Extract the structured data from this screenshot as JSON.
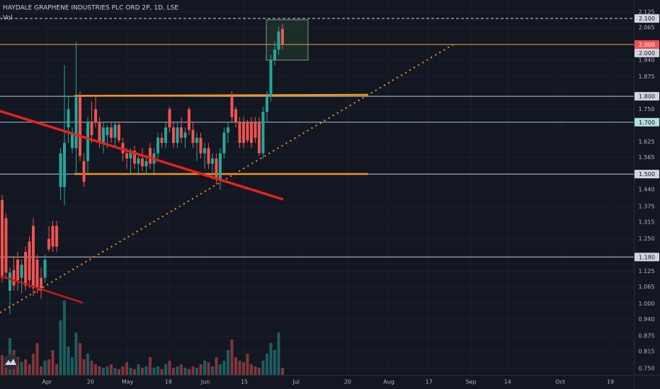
{
  "chart_data": {
    "type": "candlestick",
    "title": "HAYDALE GRAPHENE INDUSTRIES PLC ORD 2P, 1D, LSE",
    "volume_label": "Vol",
    "up_color": "#26a69a",
    "down_color": "#ef5350",
    "grid": true,
    "ylim": [
      0.7255,
      2.1714
    ],
    "yticks": [
      2.125,
      2.065,
      {
        "value": 1.94,
        "label": "1.940"
      },
      1.875,
      {
        "value": 1.75,
        "label": "1.750"
      },
      1.625,
      1.565,
      {
        "value": 1.44,
        "label": "1.440"
      },
      1.375,
      1.315,
      {
        "value": 1.25,
        "label": "1.250"
      },
      1.125,
      1.065,
      {
        "value": 1.0,
        "label": "1.000"
      },
      {
        "value": 0.94,
        "label": "0.940"
      },
      0.875,
      0.815,
      {
        "value": 0.75,
        "label": "0.750"
      }
    ],
    "xlim": [
      -0.55,
      162.2
    ],
    "xticks": [
      {
        "value": 11.5,
        "label": "Apr"
      },
      {
        "value": 22.7,
        "label": "20"
      },
      {
        "value": 32.2,
        "label": "May"
      },
      {
        "value": 42.7,
        "label": "18"
      },
      {
        "value": 52.2,
        "label": "Jun"
      },
      {
        "value": 62.2,
        "label": "15"
      },
      {
        "value": 75.5,
        "label": "Jul"
      },
      {
        "value": 88.7,
        "label": "20"
      },
      {
        "value": 99.3,
        "label": "Aug"
      },
      {
        "value": 109.6,
        "label": "17"
      },
      {
        "value": 120.4,
        "label": "Sep"
      },
      {
        "value": 129.8,
        "label": "14"
      },
      {
        "value": 143.3,
        "label": "Oct"
      },
      {
        "value": 156.2,
        "label": "19"
      }
    ],
    "price_labels": [
      {
        "value": 2.1,
        "label": "2.100",
        "color": "#d1d4dc",
        "text_color": "#131722",
        "line_color": "#d1d4dc",
        "dashed": true
      },
      {
        "value": 2.0,
        "label": "2.000",
        "color": "#ef5350",
        "text_color": "#ffffff",
        "line_color": "#f5a742",
        "dashed": false
      },
      {
        "value": 2.0,
        "label": "2.000",
        "color": "#d1d4dc",
        "text_color": "#131722",
        "line_color": null,
        "dashed": false
      },
      {
        "value": 1.8,
        "label": "1.800",
        "color": "#d1d4dc",
        "text_color": "#131722",
        "line_color": "#c8ccd6",
        "dashed": false
      },
      {
        "value": 1.7,
        "label": "1.700",
        "color": "#b2dfdb",
        "text_color": "#131722",
        "line_color": "#a9c4d6",
        "dashed": false
      },
      {
        "value": 1.5,
        "label": "1.500",
        "color": "#d1d4dc",
        "text_color": "#131722",
        "line_color": "#c8ccd6",
        "dashed": false
      },
      {
        "value": 1.18,
        "label": "1.180",
        "color": "#d1d4dc",
        "text_color": "#131722",
        "line_color": "#c8ccd6",
        "dashed": false
      }
    ],
    "open": [
      1.4,
      1.33,
      1.05,
      1.13,
      1.17,
      1.1,
      1.2,
      1.24,
      1.3,
      1.17,
      1.1,
      1.1,
      1.25,
      1.3,
      1.3,
      1.45,
      1.45,
      1.68,
      1.6,
      1.6,
      1.8,
      1.55,
      1.55,
      1.7,
      1.75,
      1.7,
      1.62,
      1.65,
      1.68,
      1.64,
      1.69,
      1.62,
      1.58,
      1.56,
      1.59,
      1.54,
      1.56,
      1.53,
      1.6,
      1.54,
      1.58,
      1.64,
      1.62,
      1.75,
      1.68,
      1.62,
      1.68,
      1.64,
      1.75,
      1.67,
      1.62,
      1.64,
      1.58,
      1.6,
      1.54,
      1.56,
      1.48,
      1.58,
      1.66,
      1.8,
      1.75,
      1.7,
      1.7,
      1.7,
      1.7,
      1.7,
      1.7,
      1.58,
      1.74,
      1.8,
      1.94,
      1.98,
      2.06
    ],
    "high": [
      1.42,
      1.35,
      1.14,
      1.18,
      1.2,
      1.17,
      1.22,
      1.26,
      1.33,
      1.19,
      1.14,
      1.19,
      1.3,
      1.32,
      1.32,
      1.6,
      1.92,
      1.8,
      1.68,
      2.01,
      1.82,
      1.58,
      1.72,
      1.78,
      1.8,
      1.72,
      1.7,
      1.69,
      1.7,
      1.7,
      1.7,
      1.64,
      1.6,
      1.6,
      1.61,
      1.58,
      1.6,
      1.57,
      1.62,
      1.6,
      1.66,
      1.66,
      1.7,
      1.76,
      1.7,
      1.7,
      1.72,
      1.68,
      1.76,
      1.7,
      1.66,
      1.66,
      1.62,
      1.62,
      1.58,
      1.58,
      1.6,
      1.68,
      1.7,
      1.82,
      1.76,
      1.72,
      1.72,
      1.71,
      1.72,
      1.72,
      1.72,
      1.76,
      1.82,
      1.96,
      2.01,
      2.07,
      2.08
    ],
    "low": [
      1.08,
      1.1,
      0.96,
      1.05,
      1.05,
      1.04,
      1.05,
      1.06,
      1.03,
      1.04,
      1.02,
      1.08,
      1.2,
      1.2,
      1.2,
      1.4,
      1.38,
      1.62,
      1.58,
      1.5,
      1.55,
      1.45,
      1.5,
      1.62,
      1.68,
      1.6,
      1.58,
      1.6,
      1.62,
      1.6,
      1.62,
      1.55,
      1.52,
      1.5,
      1.52,
      1.5,
      1.51,
      1.5,
      1.52,
      1.5,
      1.56,
      1.6,
      1.6,
      1.66,
      1.6,
      1.6,
      1.62,
      1.6,
      1.65,
      1.6,
      1.55,
      1.56,
      1.52,
      1.52,
      1.48,
      1.46,
      1.44,
      1.56,
      1.62,
      1.7,
      1.68,
      1.6,
      1.6,
      1.62,
      1.6,
      1.62,
      1.57,
      1.56,
      1.7,
      1.78,
      1.92,
      1.96,
      1.98
    ],
    "close": [
      1.1,
      1.12,
      1.12,
      1.07,
      1.09,
      1.15,
      1.07,
      1.09,
      1.06,
      1.06,
      1.05,
      1.17,
      1.21,
      1.22,
      1.22,
      1.58,
      1.62,
      1.75,
      1.66,
      1.8,
      1.57,
      1.47,
      1.7,
      1.65,
      1.7,
      1.62,
      1.68,
      1.68,
      1.64,
      1.69,
      1.63,
      1.58,
      1.56,
      1.59,
      1.54,
      1.56,
      1.53,
      1.55,
      1.54,
      1.58,
      1.64,
      1.62,
      1.68,
      1.68,
      1.62,
      1.68,
      1.64,
      1.66,
      1.67,
      1.62,
      1.64,
      1.58,
      1.6,
      1.54,
      1.56,
      1.48,
      1.58,
      1.66,
      1.68,
      1.72,
      1.7,
      1.62,
      1.62,
      1.63,
      1.62,
      1.64,
      1.58,
      1.74,
      1.8,
      1.94,
      1.98,
      2.05,
      2.0
    ],
    "volume": [
      28,
      20,
      52,
      35,
      25,
      18,
      22,
      15,
      30,
      45,
      12,
      20,
      22,
      35,
      15,
      77,
      105,
      40,
      25,
      60,
      45,
      22,
      30,
      20,
      15,
      12,
      10,
      12,
      15,
      10,
      8,
      12,
      18,
      10,
      8,
      15,
      10,
      12,
      25,
      10,
      12,
      8,
      15,
      20,
      10,
      12,
      15,
      10,
      8,
      12,
      10,
      15,
      20,
      18,
      12,
      25,
      15,
      20,
      35,
      50,
      25,
      20,
      18,
      30,
      15,
      12,
      10,
      20,
      30,
      45,
      35,
      60,
      10
    ]
  }
}
